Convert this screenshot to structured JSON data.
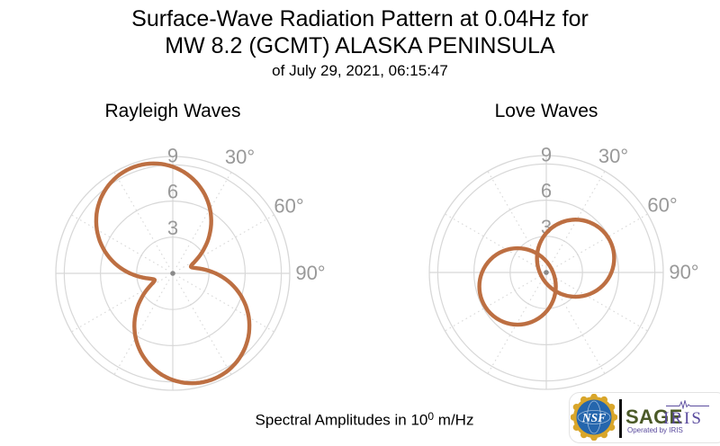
{
  "title": {
    "line1": "Surface-Wave Radiation Pattern at 0.04Hz for",
    "line2": "MW 8.2 (GCMT) ALASKA PENINSULA",
    "line3": "of July 29, 2021, 06:15:47"
  },
  "caption": {
    "prefix": "Spectral Amplitudes in 10",
    "exponent": "0",
    "suffix": " m/Hz"
  },
  "footer": {
    "nsf_label": "NSF",
    "sage_label": "SAGE",
    "operated_by": "Operated by IRIS",
    "iris_label": "IRIS"
  },
  "colors": {
    "curve": "#bd6f42",
    "grid": "#d8d8d8",
    "axis_label": "#999999",
    "center_dot": "#8a8a8a",
    "title_text": "#000000",
    "sage_green": "#4b5a28",
    "iris_purple": "#5a4b9e",
    "nsf_blue": "#2566ad",
    "nsf_gold": "#d9a62a",
    "logo_bar": "#111111"
  },
  "chart_data": [
    {
      "id": "rayleigh",
      "type": "polar",
      "title": "Rayleigh Waves",
      "units": "10^0 m/Hz",
      "r_ticks": [
        3,
        6,
        9
      ],
      "r_max": 9.7,
      "angle_tick_labels": [
        {
          "deg": 30,
          "text": "30°"
        },
        {
          "deg": 60,
          "text": "60°"
        },
        {
          "deg": 90,
          "text": "90°"
        }
      ],
      "solid_spokes_deg": [
        0,
        90,
        180,
        270
      ],
      "dotted_spokes_deg": [
        30,
        60,
        120,
        150,
        210,
        240,
        300,
        330
      ],
      "pattern": {
        "kind": "two_lobe_peanut",
        "peak_amplitude": 9.4,
        "lobe_azimuths_deg": [
          340,
          160
        ],
        "waist_amplitude": 1.6,
        "waist_azimuths_deg": [
          70,
          250
        ],
        "samples_deg_r": [
          [
            0,
            8.9
          ],
          [
            10,
            8.2
          ],
          [
            20,
            7.3
          ],
          [
            30,
            6.2
          ],
          [
            40,
            4.9
          ],
          [
            50,
            3.5
          ],
          [
            60,
            2.3
          ],
          [
            70,
            1.6
          ],
          [
            80,
            2.3
          ],
          [
            90,
            3.5
          ],
          [
            100,
            4.9
          ],
          [
            110,
            6.2
          ],
          [
            120,
            7.3
          ],
          [
            130,
            8.2
          ],
          [
            140,
            8.9
          ],
          [
            150,
            9.3
          ],
          [
            160,
            9.4
          ],
          [
            170,
            9.3
          ],
          [
            180,
            8.9
          ],
          [
            190,
            8.2
          ],
          [
            200,
            7.3
          ],
          [
            210,
            6.2
          ],
          [
            220,
            4.9
          ],
          [
            230,
            3.5
          ],
          [
            240,
            2.3
          ],
          [
            250,
            1.6
          ],
          [
            260,
            2.3
          ],
          [
            270,
            3.5
          ],
          [
            280,
            4.9
          ],
          [
            290,
            6.2
          ],
          [
            300,
            7.3
          ],
          [
            310,
            8.2
          ],
          [
            320,
            8.9
          ],
          [
            330,
            9.3
          ],
          [
            340,
            9.4
          ],
          [
            350,
            9.3
          ]
        ]
      }
    },
    {
      "id": "love",
      "type": "polar",
      "title": "Love Waves",
      "units": "10^0 m/Hz",
      "r_ticks": [
        3,
        6,
        9
      ],
      "r_max": 9.7,
      "angle_tick_labels": [
        {
          "deg": 30,
          "text": "30°"
        },
        {
          "deg": 60,
          "text": "60°"
        },
        {
          "deg": 90,
          "text": "90°"
        }
      ],
      "solid_spokes_deg": [
        0,
        90,
        180,
        270
      ],
      "dotted_spokes_deg": [
        30,
        60,
        120,
        150,
        210,
        240,
        300,
        330
      ],
      "pattern": {
        "kind": "two_circle_lobes",
        "peak_amplitude": 5.9,
        "lobes": [
          {
            "azimuth_deg": 64,
            "center_dist": 2.7,
            "radius": 3.2
          },
          {
            "azimuth_deg": 244,
            "center_dist": 2.65,
            "radius": 3.17
          }
        ]
      }
    }
  ]
}
